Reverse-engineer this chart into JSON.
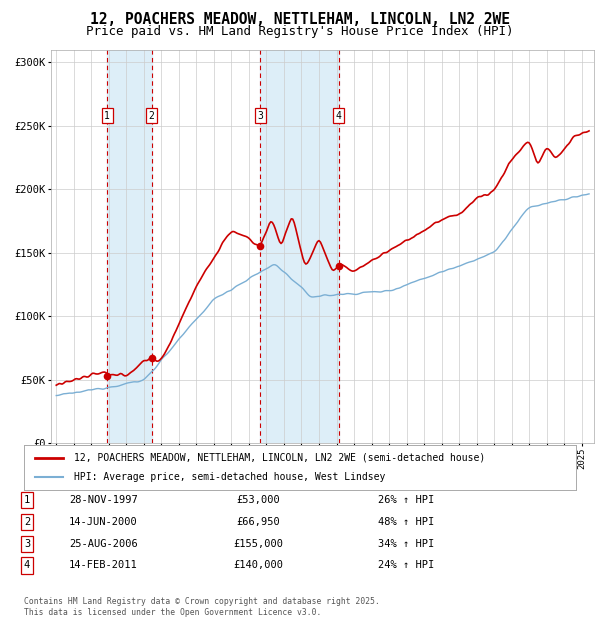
{
  "title1": "12, POACHERS MEADOW, NETTLEHAM, LINCOLN, LN2 2WE",
  "title2": "Price paid vs. HM Land Registry's House Price Index (HPI)",
  "legend_red": "12, POACHERS MEADOW, NETTLEHAM, LINCOLN, LN2 2WE (semi-detached house)",
  "legend_blue": "HPI: Average price, semi-detached house, West Lindsey",
  "footer": "Contains HM Land Registry data © Crown copyright and database right 2025.\nThis data is licensed under the Open Government Licence v3.0.",
  "sales": [
    {
      "num": 1,
      "date": "28-NOV-1997",
      "price": 53000,
      "hpi_pct": "26% ↑ HPI",
      "x_year": 1997.91
    },
    {
      "num": 2,
      "date": "14-JUN-2000",
      "price": 66950,
      "hpi_pct": "48% ↑ HPI",
      "x_year": 2000.45
    },
    {
      "num": 3,
      "date": "25-AUG-2006",
      "price": 155000,
      "hpi_pct": "34% ↑ HPI",
      "x_year": 2006.65
    },
    {
      "num": 4,
      "date": "14-FEB-2011",
      "price": 140000,
      "hpi_pct": "24% ↑ HPI",
      "x_year": 2011.12
    }
  ],
  "table_data": [
    [
      "1",
      "28-NOV-1997",
      "£53,000",
      "26% ↑ HPI"
    ],
    [
      "2",
      "14-JUN-2000",
      "£66,950",
      "48% ↑ HPI"
    ],
    [
      "3",
      "25-AUG-2006",
      "£155,000",
      "34% ↑ HPI"
    ],
    [
      "4",
      "14-FEB-2011",
      "£140,000",
      "24% ↑ HPI"
    ]
  ],
  "ylim": [
    0,
    310000
  ],
  "xlim_start": 1994.7,
  "xlim_end": 2025.7,
  "red_color": "#cc0000",
  "blue_color": "#7bafd4",
  "shade_color": "#ddeef8",
  "background_color": "#ffffff",
  "grid_color": "#cccccc",
  "title_fontsize": 10.5,
  "subtitle_fontsize": 9.0
}
